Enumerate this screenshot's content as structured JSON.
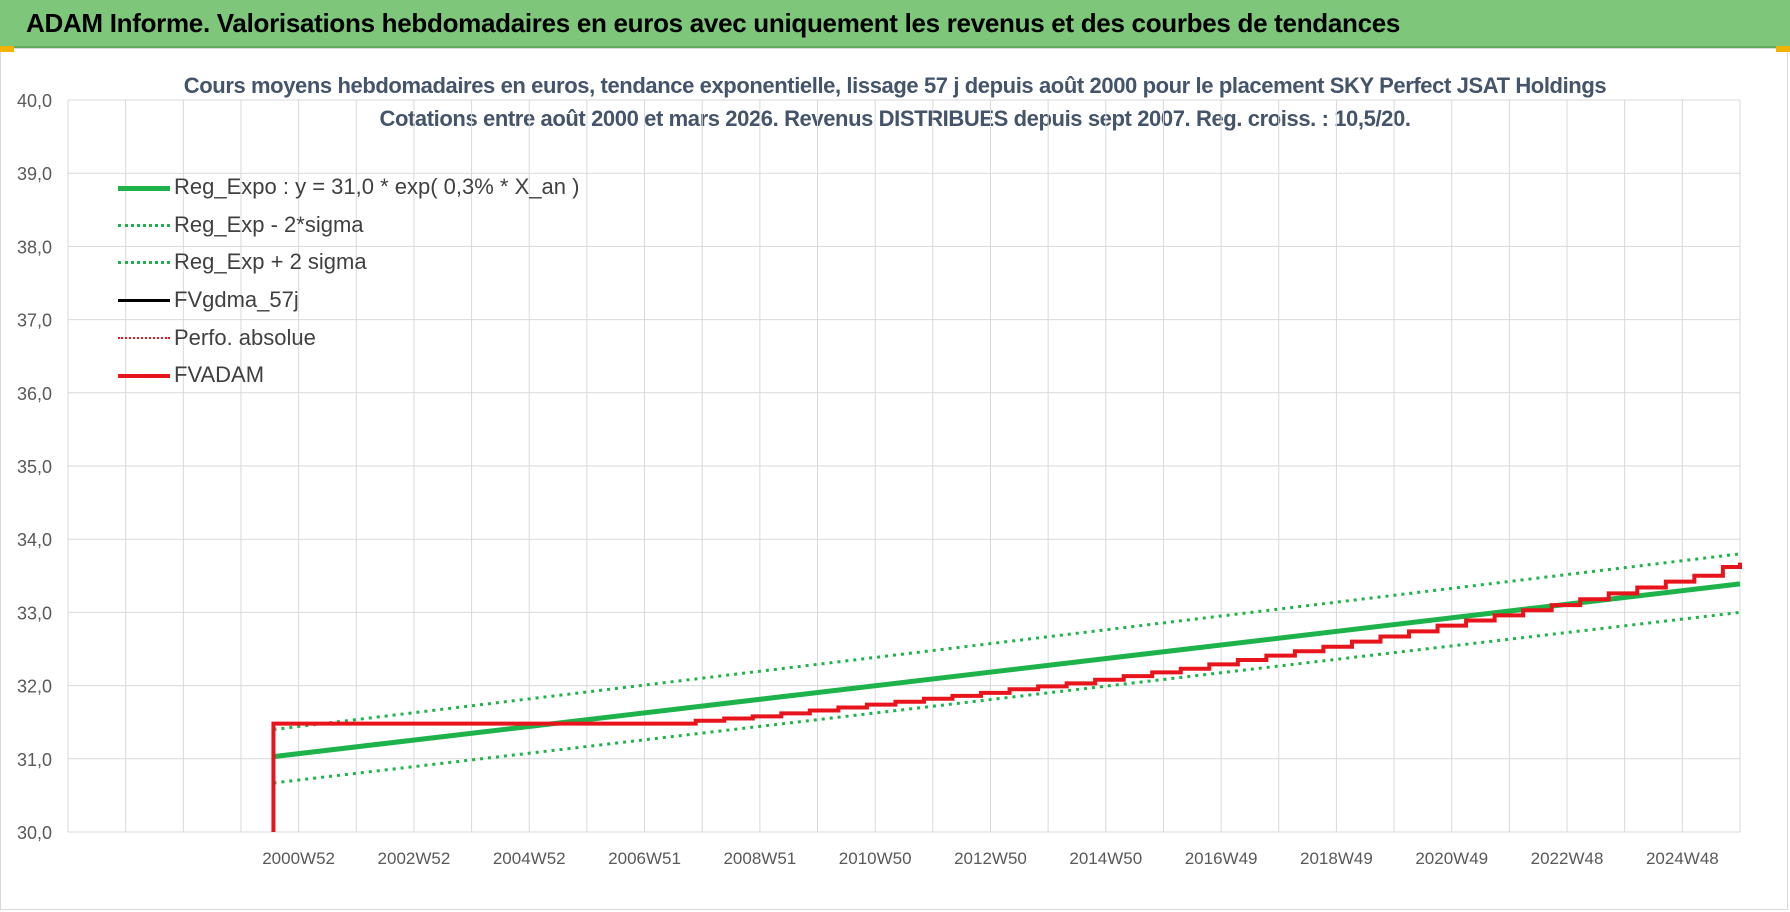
{
  "banner": {
    "title": "ADAM Informe. Valorisations hebdomadaires en euros avec uniquement les revenus et des courbes de tendances"
  },
  "colors": {
    "banner_bg": "#7dc67a",
    "title_text": "#44546a",
    "trend_green": "#1db34a",
    "fvadam_red": "#e8141c",
    "fvgdma_black": "#000000",
    "grid": "#d9d9d9",
    "corner_marker": "#f0b400"
  },
  "chart_data": {
    "type": "line",
    "title": "Cours moyens hebdomadaires en euros, tendance exponentielle, lissage 57 j depuis août 2000 pour le placement SKY Perfect JSAT Holdings",
    "subtitle": "Cotations entre août 2000 et mars 2026.  Revenus DISTRIBUES depuis sept 2007.  Reg. croiss. : 10,5/20.",
    "xlabel": "",
    "ylabel": "",
    "ylim": [
      30.0,
      40.0
    ],
    "y_ticks": [
      "40,0",
      "39,0",
      "38,0",
      "37,0",
      "36,0",
      "35,0",
      "34,0",
      "33,0",
      "32,0",
      "31,0",
      "30,0"
    ],
    "x_tick_labels": [
      "2000W52",
      "2002W52",
      "2004W52",
      "2006W51",
      "2008W51",
      "2010W50",
      "2012W50",
      "2014W50",
      "2016W49",
      "2018W49",
      "2020W49",
      "2022W48",
      "2024W48"
    ],
    "xlim": [
      1997.0,
      2026.3
    ],
    "grid": true,
    "legend_position": "top-left",
    "series": [
      {
        "name": "Reg_Expo : y = 31,0 * exp( 0,3% *  X_an )",
        "style": "solid-thick",
        "color": "#1db34a",
        "x": [
          2000.6,
          2026.3
        ],
        "y": [
          31.03,
          33.39
        ]
      },
      {
        "name": "Reg_Exp - 2*sigma",
        "style": "dotted",
        "color": "#1db34a",
        "x": [
          2000.6,
          2026.3
        ],
        "y": [
          30.67,
          33.0
        ]
      },
      {
        "name": "Reg_Exp + 2 sigma",
        "style": "dotted",
        "color": "#1db34a",
        "x": [
          2000.6,
          2026.3
        ],
        "y": [
          31.4,
          33.8
        ]
      },
      {
        "name": "FVgdma_57j",
        "style": "solid",
        "color": "#000000",
        "x": [],
        "y": []
      },
      {
        "name": "Perfo. absolue",
        "style": "dotted-thin",
        "color": "#e8141c",
        "x": [],
        "y": []
      },
      {
        "name": "FVADAM",
        "style": "step-thick",
        "color": "#e8141c",
        "x": [
          2000.6,
          2000.6,
          2007.7,
          2008.0,
          2008.5,
          2009.0,
          2009.5,
          2010.0,
          2010.5,
          2011.0,
          2011.5,
          2012.0,
          2012.5,
          2013.0,
          2013.5,
          2014.0,
          2014.5,
          2015.0,
          2015.5,
          2016.0,
          2016.5,
          2017.0,
          2017.5,
          2018.0,
          2018.5,
          2019.0,
          2019.5,
          2020.0,
          2020.5,
          2021.0,
          2021.5,
          2022.0,
          2022.5,
          2023.0,
          2023.5,
          2024.0,
          2024.5,
          2025.0,
          2025.5,
          2026.0,
          2026.3
        ],
        "y": [
          30.0,
          31.48,
          31.48,
          31.52,
          31.55,
          31.58,
          31.62,
          31.66,
          31.7,
          31.74,
          31.78,
          31.82,
          31.86,
          31.9,
          31.95,
          31.99,
          32.03,
          32.08,
          32.13,
          32.18,
          32.23,
          32.29,
          32.35,
          32.41,
          32.47,
          32.53,
          32.6,
          32.67,
          32.74,
          32.82,
          32.89,
          32.96,
          33.03,
          33.1,
          33.18,
          33.26,
          33.34,
          33.42,
          33.5,
          33.62,
          33.68
        ]
      }
    ]
  }
}
